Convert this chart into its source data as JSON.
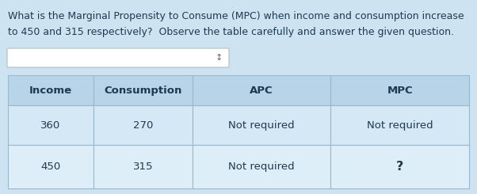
{
  "title_line1": "What is the Marginal Propensity to Consume (MPC) when income and consumption increase",
  "title_line2": "to 450 and 315 respectively?  Observe the table carefully and answer the given question.",
  "bg_color": "#cde3f2",
  "header_bg_color": "#b8d4e8",
  "row1_bg_color": "#d5e8f5",
  "row2_bg_color": "#ddeef8",
  "border_color": "#9ab8cc",
  "text_color": "#1e3a52",
  "header_labels": [
    "Income",
    "Consumption",
    "APC",
    "MPC"
  ],
  "row1": [
    "360",
    "270",
    "Not required",
    "Not required"
  ],
  "row2": [
    "450",
    "315",
    "Not required",
    "?"
  ],
  "input_box_color": "#ffffff",
  "title_fontsize": 9.0,
  "header_fontsize": 9.5,
  "cell_fontsize": 9.5
}
